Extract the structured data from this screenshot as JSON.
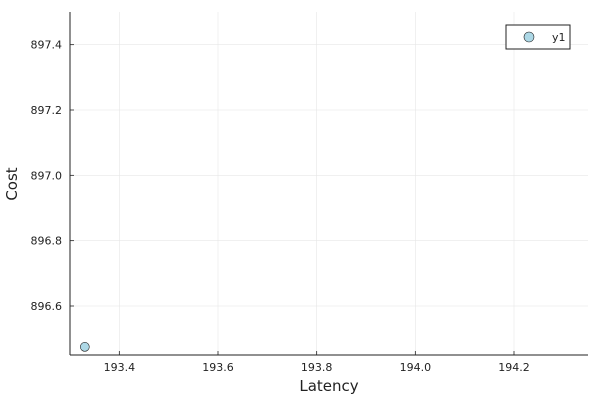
{
  "chart_data": {
    "type": "scatter",
    "title": "",
    "xlabel": "Latency",
    "ylabel": "Cost",
    "xlim": [
      193.3,
      194.35
    ],
    "ylim": [
      896.45,
      897.5
    ],
    "xticks": [
      193.4,
      193.6,
      193.8,
      194.0,
      194.2
    ],
    "xtick_labels": [
      "193.4",
      "193.6",
      "193.8",
      "194.0",
      "194.2"
    ],
    "yticks": [
      896.6,
      896.8,
      897.0,
      897.2,
      897.4
    ],
    "ytick_labels": [
      "896.6",
      "896.8",
      "897.0",
      "897.2",
      "897.4"
    ],
    "grid": true,
    "legend_position": "top-right",
    "series": [
      {
        "name": "y1",
        "color": "#add8e6",
        "points": [
          {
            "x": 193.33,
            "y": 896.475
          }
        ]
      }
    ]
  }
}
